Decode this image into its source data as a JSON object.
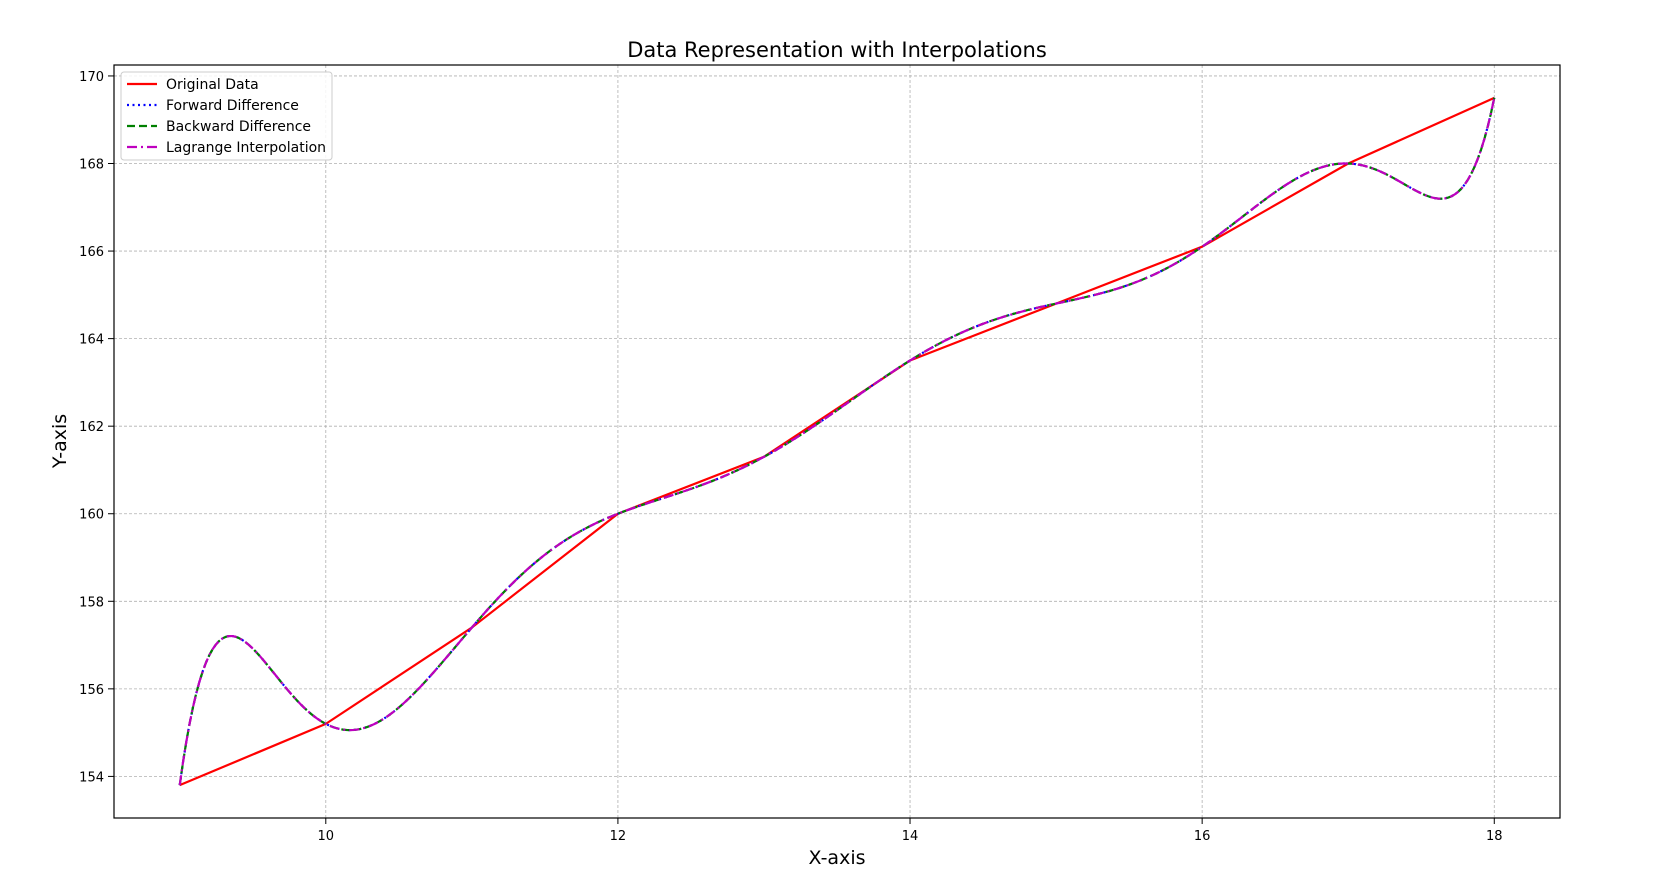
{
  "chart_data": {
    "type": "line",
    "title": "Data Representation with Interpolations",
    "xlabel": "X-axis",
    "ylabel": "Y-axis",
    "xlim": [
      8.55,
      18.45
    ],
    "ylim": [
      153.05,
      170.25
    ],
    "x_ticks": [
      10,
      12,
      14,
      16,
      18
    ],
    "y_ticks": [
      154,
      156,
      158,
      160,
      162,
      164,
      166,
      168,
      170
    ],
    "grid": true,
    "legend_position": "top-left",
    "original_x": [
      9,
      10,
      11,
      12,
      13,
      14,
      15,
      16,
      17,
      18
    ],
    "original_y": [
      153.8,
      155.2,
      157.4,
      160.0,
      161.3,
      163.5,
      164.8,
      166.1,
      168.0,
      169.5
    ],
    "series": [
      {
        "name": "Original Data",
        "color": "#ff0000",
        "dash": "solid",
        "source": "original"
      },
      {
        "name": "Forward Difference",
        "color": "#0000ff",
        "dash": "dotted",
        "source": "interpolated"
      },
      {
        "name": "Backward Difference",
        "color": "#008000",
        "dash": "dashed",
        "source": "interpolated"
      },
      {
        "name": "Lagrange Interpolation",
        "color": "#bf00bf",
        "dash": "dashdot",
        "source": "interpolated"
      }
    ]
  }
}
